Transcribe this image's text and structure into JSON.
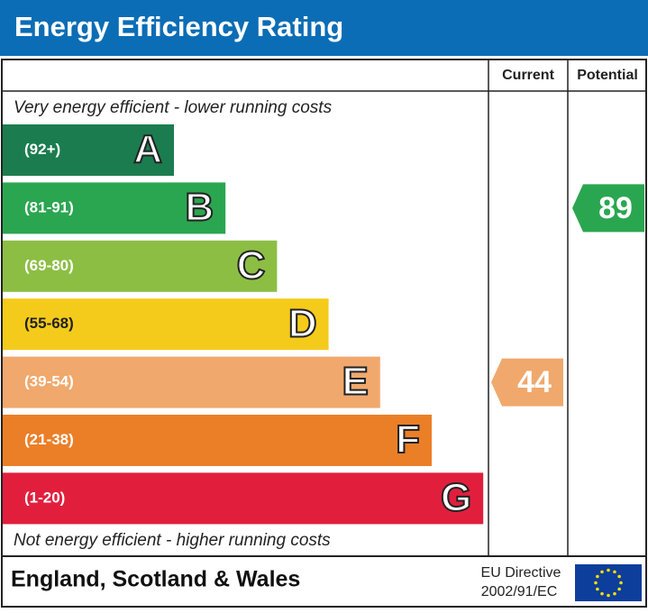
{
  "title": "Energy Efficiency Rating",
  "columns": [
    "Current",
    "Potential"
  ],
  "top_note": "Very energy efficient - lower running costs",
  "bottom_note": "Not energy efficient - higher running costs",
  "bands": [
    {
      "range": "(92+)",
      "letter": "A",
      "color": "#1b7d4f"
    },
    {
      "range": "(81-91)",
      "letter": "B",
      "color": "#2aa650"
    },
    {
      "range": "(69-80)",
      "letter": "C",
      "color": "#8cbe44"
    },
    {
      "range": "(55-68)",
      "letter": "D",
      "color": "#f5cb1b"
    },
    {
      "range": "(39-54)",
      "letter": "E",
      "color": "#f0a86c"
    },
    {
      "range": "(21-38)",
      "letter": "F",
      "color": "#eb7f27"
    },
    {
      "range": "(1-20)",
      "letter": "G",
      "color": "#e11f3d"
    }
  ],
  "current": 44,
  "potential": 89,
  "footer": {
    "region": "England, Scotland & Wales",
    "directive_line1": "EU Directive",
    "directive_line2": "2002/91/EC"
  }
}
